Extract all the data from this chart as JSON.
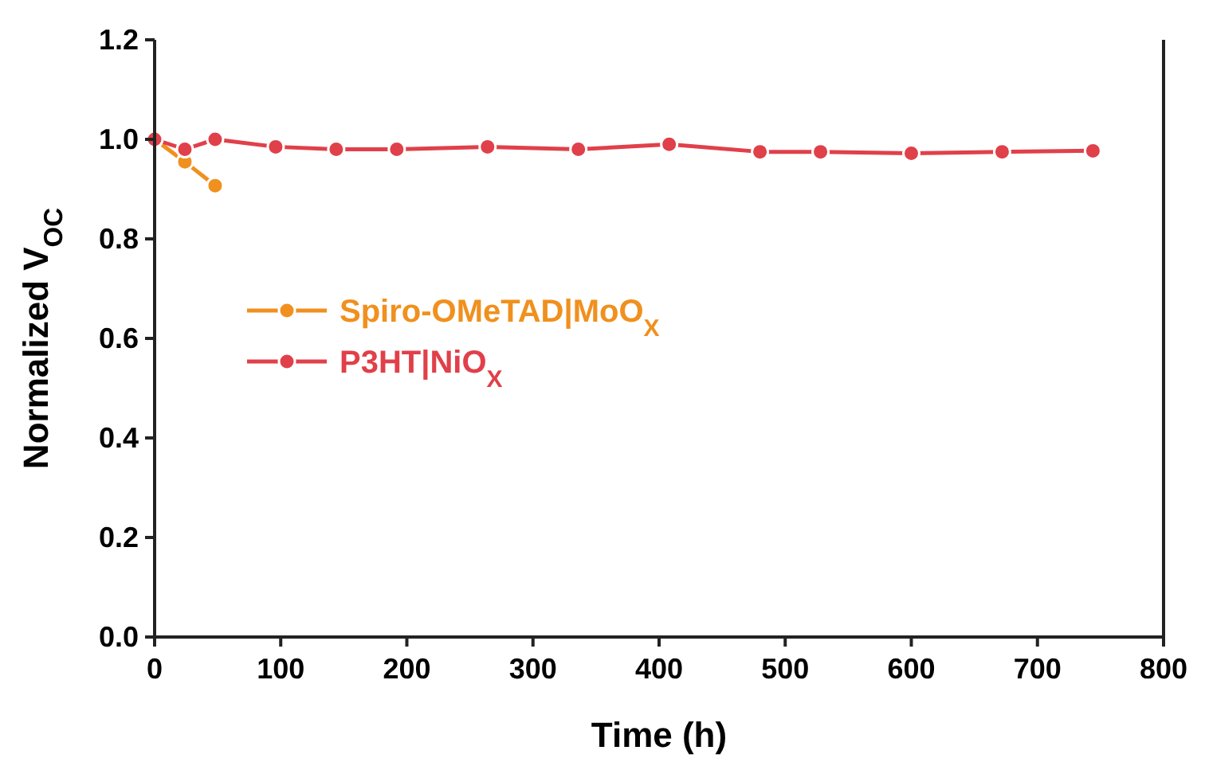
{
  "chart_data": {
    "type": "line",
    "xlabel": "Time (h)",
    "ylabel": "Normalized V$_{OC}$",
    "xlim": [
      0,
      800
    ],
    "ylim": [
      0,
      1.2
    ],
    "xticks": [
      0,
      100,
      200,
      300,
      400,
      500,
      600,
      700,
      800
    ],
    "yticks": [
      {
        "value": 0,
        "label": "0.0"
      },
      {
        "value": 0.2,
        "label": "0.2"
      },
      {
        "value": 0.4,
        "label": "0.4"
      },
      {
        "value": 0.6,
        "label": "0.6"
      },
      {
        "value": 0.8,
        "label": "0.8"
      },
      {
        "value": 1,
        "label": "1.0"
      },
      {
        "value": 1.2,
        "label": "1.2"
      }
    ],
    "grid": false,
    "legend": "left",
    "marker": "circle",
    "line_style": "solid",
    "series": [
      {
        "name": "Spiro-OMeTAD|MoO$_{X}$",
        "color": "#f0901e",
        "x": [
          0,
          24,
          48
        ],
        "values": [
          1.0,
          0.955,
          0.907
        ]
      },
      {
        "name": "P3HT|NiO$_{X}$",
        "color": "#e0404a",
        "x": [
          0,
          24,
          48,
          96,
          144,
          192,
          264,
          336,
          408,
          480,
          528,
          600,
          672,
          744
        ],
        "values": [
          1.0,
          0.98,
          1.0,
          0.985,
          0.98,
          0.98,
          0.985,
          0.98,
          0.99,
          0.975,
          0.975,
          0.972,
          0.975,
          0.977
        ]
      }
    ]
  }
}
